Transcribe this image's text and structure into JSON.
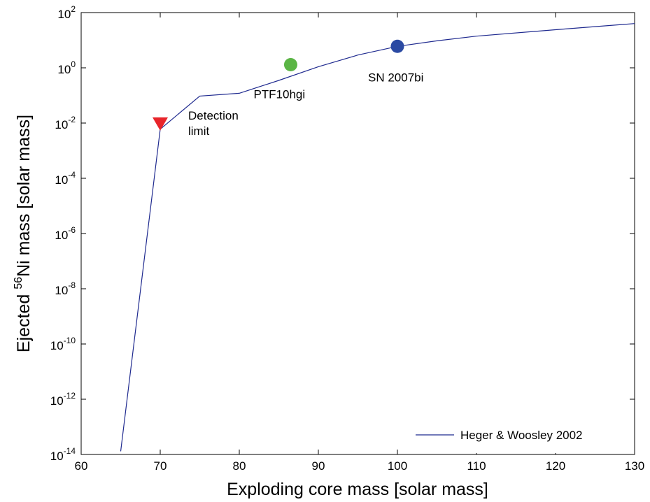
{
  "chart_data": {
    "type": "line",
    "x_label": "Exploding core mass [solar mass]",
    "y_label": {
      "prefix": "Ejected ",
      "superscript": "56",
      "suffix": "Ni mass [solar mass]"
    },
    "xlim": [
      60,
      130
    ],
    "ylim_log10": [
      -14,
      2
    ],
    "y_scale": "log",
    "x_ticks": [
      60,
      70,
      80,
      90,
      100,
      110,
      120,
      130
    ],
    "y_tick_exponents": [
      -14,
      -12,
      -10,
      -8,
      -6,
      -4,
      -2,
      0,
      2
    ],
    "y_tick_base": "10",
    "grid": false,
    "legend_position": "bottom-right",
    "series": [
      {
        "name": "Heger & Woosley 2002",
        "color": "#1f2a8f",
        "points": [
          {
            "x": 65,
            "y": 1.3e-14
          },
          {
            "x": 70,
            "y": 0.006
          },
          {
            "x": 75,
            "y": 0.095
          },
          {
            "x": 80,
            "y": 0.12
          },
          {
            "x": 85,
            "y": 0.35
          },
          {
            "x": 90,
            "y": 1.1
          },
          {
            "x": 95,
            "y": 2.9
          },
          {
            "x": 100,
            "y": 6.0
          },
          {
            "x": 105,
            "y": 9.5
          },
          {
            "x": 110,
            "y": 14
          },
          {
            "x": 120,
            "y": 24
          },
          {
            "x": 130,
            "y": 40
          }
        ]
      }
    ],
    "markers": [
      {
        "label_lines": [
          "Detection",
          "limit"
        ],
        "x": 70,
        "y": 0.0095,
        "shape": "triangle-down",
        "color": "#e8242a",
        "label_side": "below-right"
      },
      {
        "label_lines": [
          "PTF10hgi"
        ],
        "x": 86.5,
        "y": 1.3,
        "shape": "circle",
        "color": "#5bb545",
        "label_side": "below-left"
      },
      {
        "label_lines": [
          "SN 2007bi"
        ],
        "x": 100,
        "y": 6.0,
        "shape": "circle",
        "color": "#2b4aa3",
        "label_side": "below"
      }
    ]
  }
}
